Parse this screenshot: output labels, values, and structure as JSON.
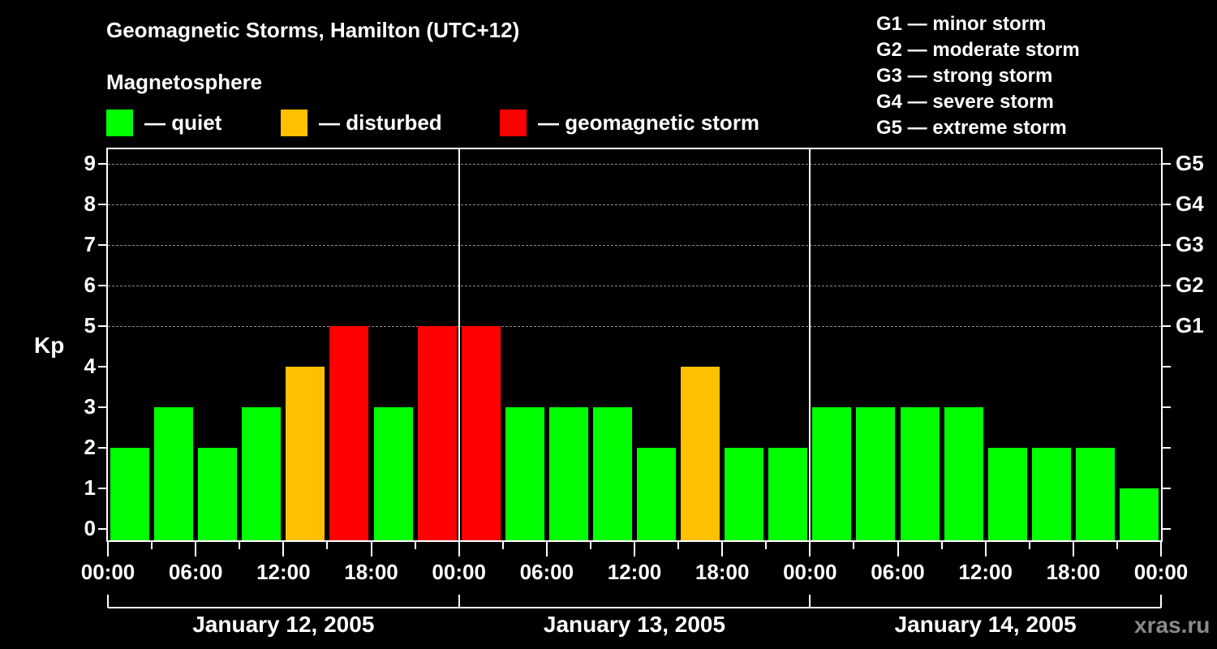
{
  "title": "Geomagnetic Storms, Hamilton (UTC+12)",
  "legend": {
    "heading": "Magnetosphere",
    "items": [
      {
        "label": "— quiet",
        "color": "#00ff00"
      },
      {
        "label": "— disturbed",
        "color": "#ffc000"
      },
      {
        "label": "— geomagnetic storm",
        "color": "#ff0000"
      }
    ]
  },
  "g_scale": [
    "G1 — minor storm",
    "G2 — moderate storm",
    "G3 — strong storm",
    "G4 — severe storm",
    "G5 — extreme storm"
  ],
  "y_axis": {
    "label": "Kp",
    "ticks": [
      "0",
      "1",
      "2",
      "3",
      "4",
      "5",
      "6",
      "7",
      "8",
      "9"
    ],
    "right_labels": [
      {
        "kp": 5,
        "label": "G1"
      },
      {
        "kp": 6,
        "label": "G2"
      },
      {
        "kp": 7,
        "label": "G3"
      },
      {
        "kp": 8,
        "label": "G4"
      },
      {
        "kp": 9,
        "label": "G5"
      }
    ]
  },
  "x_axis": {
    "tick_labels": [
      "00:00",
      "06:00",
      "12:00",
      "18:00",
      "00:00",
      "06:00",
      "12:00",
      "18:00",
      "00:00",
      "06:00",
      "12:00",
      "18:00",
      "00:00"
    ],
    "days": [
      "January 12, 2005",
      "January 13, 2005",
      "January 14, 2005"
    ]
  },
  "credit": "xras.ru",
  "colors": {
    "quiet": "#00ff00",
    "disturbed": "#ffc000",
    "storm": "#ff0000",
    "background": "#000000",
    "grid": "#8a8a8a"
  },
  "chart_data": {
    "type": "bar",
    "title": "Geomagnetic Storms, Hamilton (UTC+12)",
    "xlabel": "",
    "ylabel": "Kp",
    "ylim": [
      0,
      9
    ],
    "grid": "dashed horizontal at Kp 5-9",
    "categories": [
      "Jan 12 00:00",
      "Jan 12 03:00",
      "Jan 12 06:00",
      "Jan 12 09:00",
      "Jan 12 12:00",
      "Jan 12 15:00",
      "Jan 12 18:00",
      "Jan 12 21:00",
      "Jan 13 00:00",
      "Jan 13 03:00",
      "Jan 13 06:00",
      "Jan 13 09:00",
      "Jan 13 12:00",
      "Jan 13 15:00",
      "Jan 13 18:00",
      "Jan 13 21:00",
      "Jan 14 00:00",
      "Jan 14 03:00",
      "Jan 14 06:00",
      "Jan 14 09:00",
      "Jan 14 12:00",
      "Jan 14 15:00",
      "Jan 14 18:00",
      "Jan 14 21:00"
    ],
    "values": [
      2,
      3,
      2,
      3,
      4,
      5,
      3,
      5,
      5,
      3,
      3,
      3,
      2,
      4,
      2,
      2,
      3,
      3,
      3,
      3,
      2,
      2,
      2,
      1
    ],
    "status": [
      "quiet",
      "quiet",
      "quiet",
      "quiet",
      "disturbed",
      "storm",
      "quiet",
      "storm",
      "storm",
      "quiet",
      "quiet",
      "quiet",
      "quiet",
      "disturbed",
      "quiet",
      "quiet",
      "quiet",
      "quiet",
      "quiet",
      "quiet",
      "quiet",
      "quiet",
      "quiet",
      "quiet"
    ],
    "legend": [
      "quiet",
      "disturbed",
      "geomagnetic storm"
    ],
    "right_axis": {
      "5": "G1",
      "6": "G2",
      "7": "G3",
      "8": "G4",
      "9": "G5"
    }
  }
}
